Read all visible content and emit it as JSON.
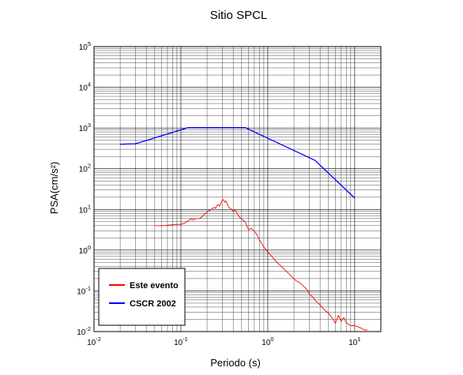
{
  "chart_data": {
    "type": "line",
    "title": "Sitio SPCL",
    "xlabel": "Periodo (s)",
    "ylabel": "PSA(cm/s²)",
    "xscale": "log",
    "yscale": "log",
    "xlim": [
      0.01,
      20
    ],
    "ylim": [
      0.01,
      100000
    ],
    "grid": true,
    "legend_position": "bottom-left",
    "x_ticks": [
      {
        "base": "10",
        "exp": "-2",
        "value": 0.01
      },
      {
        "base": "10",
        "exp": "-1",
        "value": 0.1
      },
      {
        "base": "10",
        "exp": "0",
        "value": 1
      },
      {
        "base": "10",
        "exp": "1",
        "value": 10
      }
    ],
    "y_ticks": [
      {
        "base": "10",
        "exp": "-2",
        "value": 0.01
      },
      {
        "base": "10",
        "exp": "-1",
        "value": 0.1
      },
      {
        "base": "10",
        "exp": "0",
        "value": 1
      },
      {
        "base": "10",
        "exp": "1",
        "value": 10
      },
      {
        "base": "10",
        "exp": "2",
        "value": 100
      },
      {
        "base": "10",
        "exp": "3",
        "value": 1000
      },
      {
        "base": "10",
        "exp": "4",
        "value": 10000
      },
      {
        "base": "10",
        "exp": "5",
        "value": 100000
      }
    ],
    "series": [
      {
        "name": "Este evento",
        "color": "#ff0000",
        "points": [
          [
            0.05,
            4.0
          ],
          [
            0.06,
            4.0
          ],
          [
            0.07,
            4.1
          ],
          [
            0.08,
            4.2
          ],
          [
            0.09,
            4.3
          ],
          [
            0.1,
            4.3
          ],
          [
            0.11,
            4.6
          ],
          [
            0.12,
            5.2
          ],
          [
            0.13,
            5.8
          ],
          [
            0.14,
            5.6
          ],
          [
            0.15,
            6.0
          ],
          [
            0.16,
            5.9
          ],
          [
            0.17,
            6.3
          ],
          [
            0.18,
            7.0
          ],
          [
            0.19,
            7.9
          ],
          [
            0.2,
            8.5
          ],
          [
            0.21,
            9.3
          ],
          [
            0.22,
            9.8
          ],
          [
            0.23,
            10.5
          ],
          [
            0.24,
            11.2
          ],
          [
            0.25,
            10.6
          ],
          [
            0.26,
            12.5
          ],
          [
            0.27,
            13.2
          ],
          [
            0.28,
            12.0
          ],
          [
            0.29,
            14.5
          ],
          [
            0.3,
            16.8
          ],
          [
            0.31,
            17.5
          ],
          [
            0.32,
            15.0
          ],
          [
            0.33,
            16.2
          ],
          [
            0.34,
            13.6
          ],
          [
            0.36,
            11.0
          ],
          [
            0.38,
            10.2
          ],
          [
            0.4,
            8.8
          ],
          [
            0.42,
            9.6
          ],
          [
            0.44,
            8.2
          ],
          [
            0.46,
            7.0
          ],
          [
            0.5,
            5.8
          ],
          [
            0.55,
            4.9
          ],
          [
            0.6,
            3.2
          ],
          [
            0.65,
            3.4
          ],
          [
            0.7,
            2.9
          ],
          [
            0.75,
            2.4
          ],
          [
            0.8,
            1.8
          ],
          [
            0.9,
            1.2
          ],
          [
            1.0,
            0.9
          ],
          [
            1.1,
            0.72
          ],
          [
            1.2,
            0.58
          ],
          [
            1.3,
            0.48
          ],
          [
            1.4,
            0.42
          ],
          [
            1.5,
            0.36
          ],
          [
            1.7,
            0.28
          ],
          [
            1.9,
            0.22
          ],
          [
            2.1,
            0.18
          ],
          [
            2.3,
            0.16
          ],
          [
            2.5,
            0.14
          ],
          [
            2.8,
            0.11
          ],
          [
            3.0,
            0.085
          ],
          [
            3.3,
            0.07
          ],
          [
            3.6,
            0.055
          ],
          [
            4.0,
            0.045
          ],
          [
            4.5,
            0.034
          ],
          [
            5.0,
            0.028
          ],
          [
            5.5,
            0.022
          ],
          [
            6.0,
            0.016
          ],
          [
            6.5,
            0.025
          ],
          [
            7.0,
            0.018
          ],
          [
            7.5,
            0.022
          ],
          [
            8.0,
            0.017
          ],
          [
            8.5,
            0.015
          ],
          [
            9.0,
            0.014
          ],
          [
            10.0,
            0.014
          ],
          [
            11.0,
            0.013
          ],
          [
            12.0,
            0.012
          ],
          [
            13.0,
            0.011
          ],
          [
            14.0,
            0.011
          ]
        ]
      },
      {
        "name": "CSCR 2002",
        "color": "#0000ff",
        "points": [
          [
            0.02,
            400
          ],
          [
            0.03,
            410
          ],
          [
            0.12,
            1020
          ],
          [
            0.55,
            1020
          ],
          [
            3.5,
            160
          ],
          [
            10.0,
            19
          ]
        ]
      }
    ]
  }
}
